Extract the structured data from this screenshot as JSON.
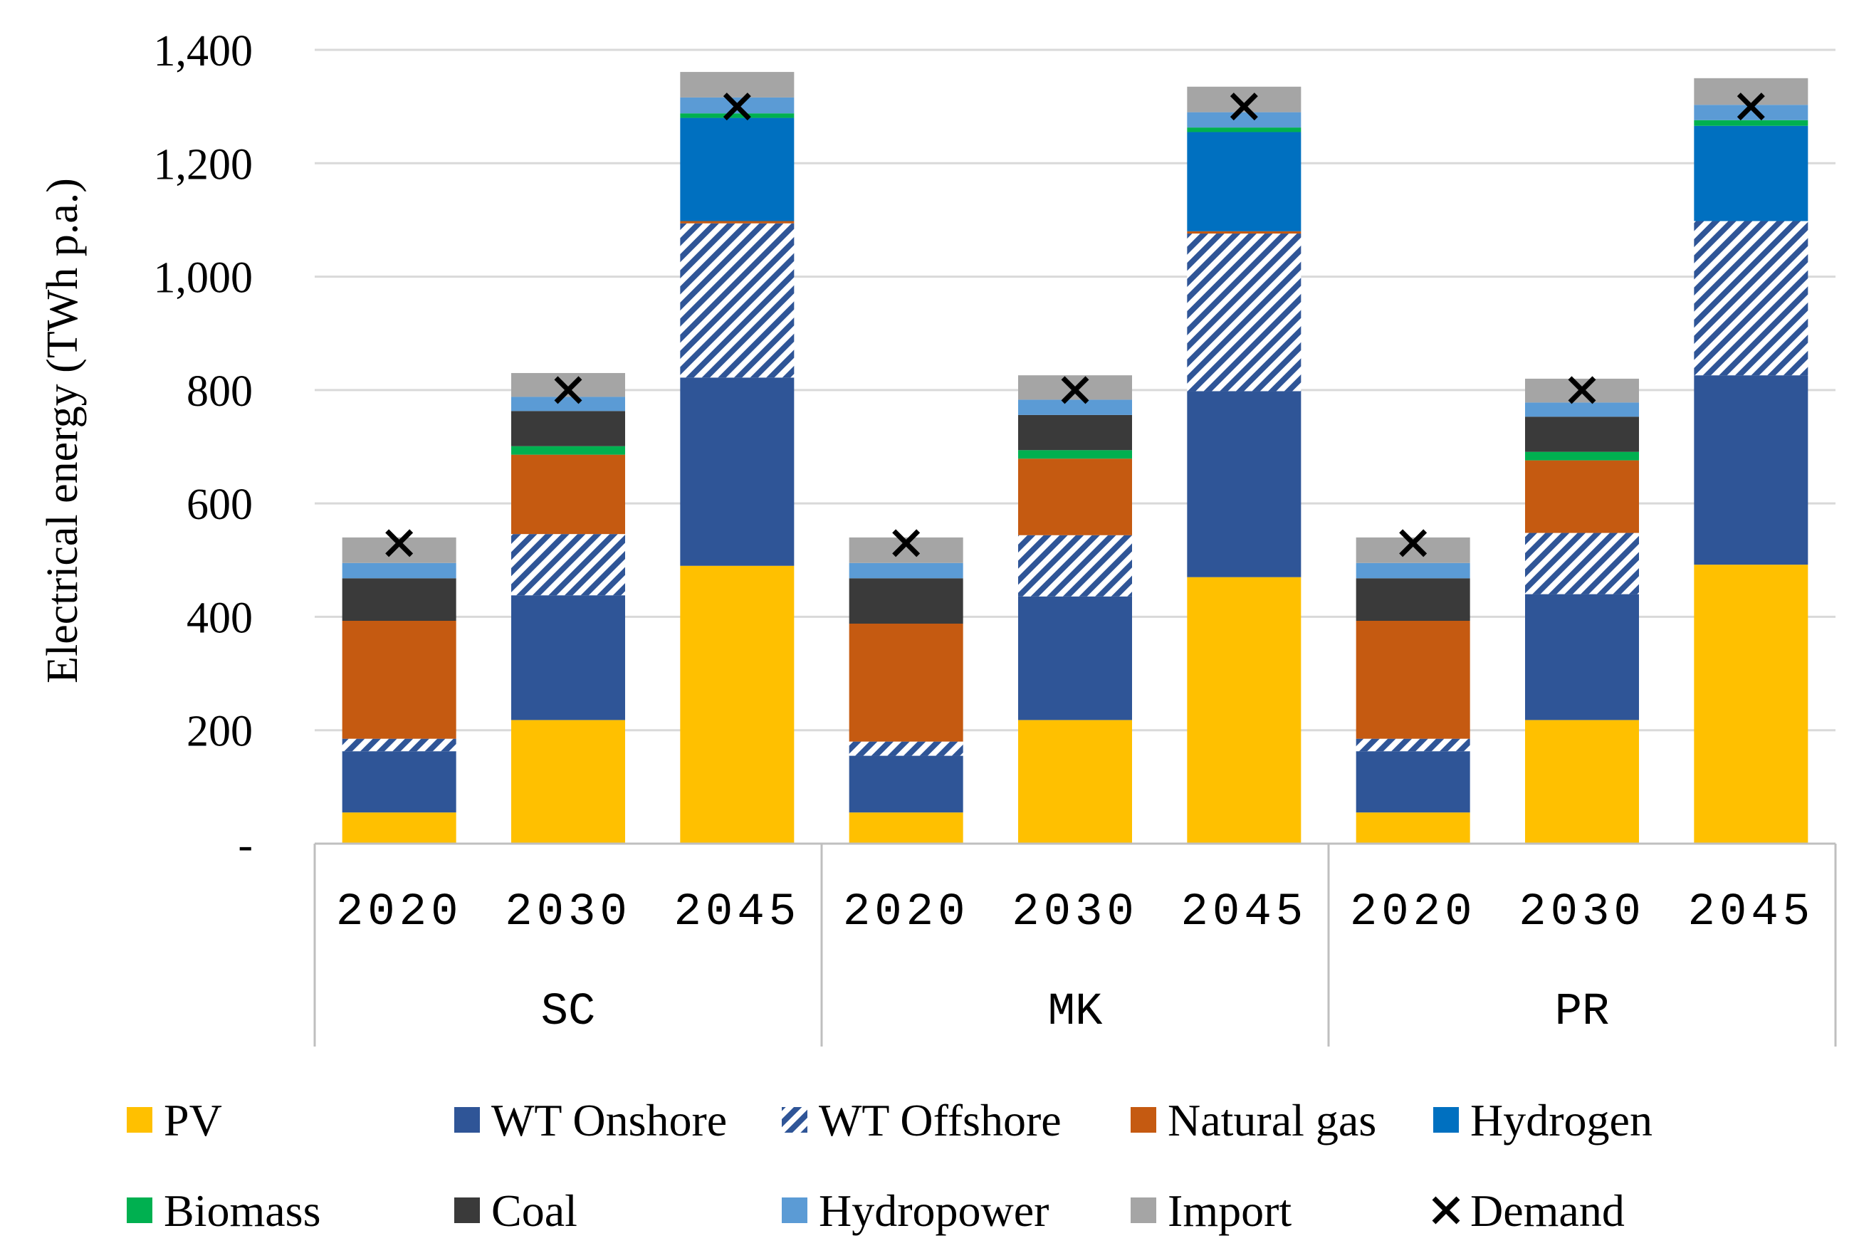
{
  "chart_data": {
    "type": "bar",
    "stacked": true,
    "ylabel": "Electrical energy (TWh p.a.)",
    "ylim": [
      0,
      1400
    ],
    "yticks": [
      0,
      200,
      400,
      600,
      800,
      1000,
      1200,
      1400
    ],
    "ytick_labels": [
      "-",
      "200",
      "400",
      "600",
      "800",
      "1,000",
      "1,200",
      "1,400"
    ],
    "grid": true,
    "legend_position": "bottom",
    "groups": [
      {
        "label": "SC",
        "categories": [
          "2020",
          "2030",
          "2045"
        ]
      },
      {
        "label": "MK",
        "categories": [
          "2020",
          "2030",
          "2045"
        ]
      },
      {
        "label": "PR",
        "categories": [
          "2020",
          "2030",
          "2045"
        ]
      }
    ],
    "series": [
      {
        "name": "PV",
        "color": "#FFC000",
        "pattern": "solid",
        "values": [
          55,
          218,
          490,
          55,
          218,
          470,
          55,
          218,
          492
        ]
      },
      {
        "name": "WT Onshore",
        "color": "#2F5597",
        "pattern": "solid",
        "values": [
          108,
          220,
          332,
          100,
          218,
          328,
          108,
          222,
          334
        ]
      },
      {
        "name": "WT Offshore",
        "color": "#2F5597",
        "pattern": "hatch",
        "values": [
          22,
          108,
          272,
          25,
          108,
          278,
          22,
          108,
          272
        ]
      },
      {
        "name": "Natural gas",
        "color": "#C55A11",
        "pattern": "solid",
        "values": [
          208,
          140,
          4,
          208,
          135,
          4,
          208,
          128,
          0
        ]
      },
      {
        "name": "Hydrogen",
        "color": "#0070C0",
        "pattern": "solid",
        "values": [
          0,
          0,
          182,
          0,
          0,
          175,
          0,
          0,
          168
        ]
      },
      {
        "name": "Biomass",
        "color": "#00B050",
        "pattern": "solid",
        "values": [
          0,
          15,
          8,
          0,
          15,
          8,
          0,
          15,
          10
        ]
      },
      {
        "name": "Coal",
        "color": "#3A3A3A",
        "pattern": "solid",
        "values": [
          75,
          62,
          0,
          80,
          62,
          0,
          75,
          62,
          0
        ]
      },
      {
        "name": "Hydropower",
        "color": "#5B9BD5",
        "pattern": "solid",
        "values": [
          27,
          25,
          28,
          27,
          27,
          27,
          27,
          25,
          27
        ]
      },
      {
        "name": "Import",
        "color": "#A5A5A5",
        "pattern": "solid",
        "values": [
          45,
          42,
          45,
          45,
          43,
          45,
          45,
          42,
          47
        ]
      }
    ],
    "demand": {
      "name": "Demand",
      "marker": "x",
      "values": [
        530,
        800,
        1300,
        530,
        800,
        1300,
        530,
        800,
        1300
      ]
    }
  }
}
